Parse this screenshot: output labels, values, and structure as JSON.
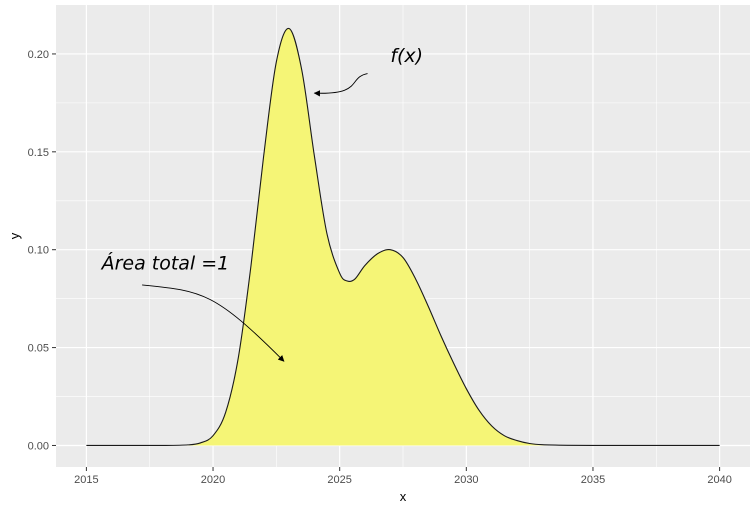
{
  "chart_data": {
    "type": "area",
    "title": "",
    "xlabel": "x",
    "ylabel": "y",
    "xlim": [
      2013.8,
      2041.2
    ],
    "ylim": [
      -0.011,
      0.225
    ],
    "x_ticks": [
      2015,
      2020,
      2025,
      2030,
      2035,
      2040
    ],
    "x_tick_labels": [
      "2015",
      "2020",
      "2025",
      "2030",
      "2035",
      "2040"
    ],
    "y_ticks": [
      0.0,
      0.05,
      0.1,
      0.15,
      0.2
    ],
    "y_tick_labels": [
      "0.00",
      "0.05",
      "0.10",
      "0.15",
      "0.20"
    ],
    "x_minor_ticks": [
      2017.5,
      2022.5,
      2027.5,
      2032.5,
      2037.5
    ],
    "y_minor_ticks": [
      0.025,
      0.075,
      0.125,
      0.175
    ],
    "grid": true,
    "legend": "none",
    "fill_color": "#f5f576",
    "line_color": "#1a1a1a",
    "panel_color": "#ebebeb",
    "grid_color": "#ffffff",
    "series": [
      {
        "x": [
          2015,
          2016,
          2017,
          2018,
          2019,
          2019.5,
          2020,
          2020.5,
          2021,
          2021.5,
          2022,
          2022.5,
          2023,
          2023.5,
          2024,
          2024.5,
          2025,
          2025.3,
          2025.6,
          2026,
          2026.5,
          2027,
          2027.5,
          2028,
          2028.5,
          2029,
          2029.5,
          2030,
          2030.5,
          2031,
          2031.5,
          2032,
          2032.5,
          2033,
          2034,
          2035,
          2036,
          2037,
          2038,
          2039,
          2040
        ],
        "y": [
          0.0,
          0.0,
          0.0,
          0.0,
          0.0003,
          0.0013,
          0.005,
          0.017,
          0.045,
          0.092,
          0.148,
          0.196,
          0.213,
          0.192,
          0.148,
          0.108,
          0.088,
          0.084,
          0.085,
          0.092,
          0.098,
          0.1,
          0.096,
          0.085,
          0.071,
          0.056,
          0.042,
          0.029,
          0.018,
          0.01,
          0.005,
          0.0025,
          0.001,
          0.0004,
          0.0001,
          0.0,
          0.0,
          0.0,
          0.0,
          0.0,
          0.0
        ]
      }
    ],
    "annotations": [
      {
        "text": "f(x)",
        "x": 2027.0,
        "y": 0.196,
        "arrow_from": [
          2026.1,
          0.19
        ],
        "arrow_to": [
          2024.0,
          0.18
        ]
      },
      {
        "text": "Área total =1",
        "x": 2015.6,
        "y": 0.09,
        "arrow_from": [
          2017.2,
          0.082
        ],
        "arrow_to": [
          2022.8,
          0.043
        ]
      }
    ]
  }
}
